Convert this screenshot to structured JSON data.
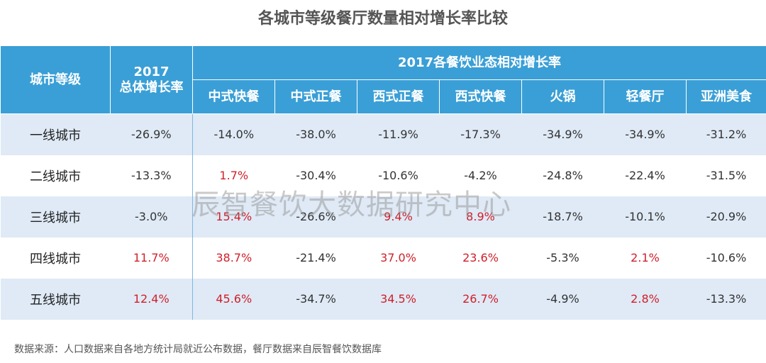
{
  "title": "各城市等级餐厅数量相对增长率比较",
  "header": {
    "city_level": "城市等级",
    "overall_line1": "2017",
    "overall_line2": "总体增长率",
    "group": "2017各餐饮业态相对增长率",
    "categories": [
      "中式快餐",
      "中式正餐",
      "西式正餐",
      "西式快餐",
      "火锅",
      "轻餐厅",
      "亚洲美食"
    ]
  },
  "rows": [
    {
      "city": "一线城市",
      "overall": "-26.9%",
      "values": [
        "-14.0%",
        "-38.0%",
        "-11.9%",
        "-17.3%",
        "-34.9%",
        "-34.9%",
        "-31.2%"
      ]
    },
    {
      "city": "二线城市",
      "overall": "-13.3%",
      "values": [
        "1.7%",
        "-30.4%",
        "-10.6%",
        "-4.2%",
        "-24.8%",
        "-22.4%",
        "-31.5%"
      ]
    },
    {
      "city": "三线城市",
      "overall": "-3.0%",
      "values": [
        "15.4%",
        "-26.6%",
        "9.4%",
        "8.9%",
        "-18.7%",
        "-10.1%",
        "-20.9%"
      ]
    },
    {
      "city": "四线城市",
      "overall": "11.7%",
      "values": [
        "38.7%",
        "-21.4%",
        "37.0%",
        "23.6%",
        "-5.3%",
        "2.1%",
        "-10.6%"
      ]
    },
    {
      "city": "五线城市",
      "overall": "12.4%",
      "values": [
        "45.6%",
        "-34.7%",
        "34.5%",
        "26.7%",
        "-4.9%",
        "2.8%",
        "-13.3%"
      ]
    }
  ],
  "watermark": "辰智餐饮大数据研究中心",
  "source": "数据来源：人口数据来自各地方统计局就近公布数据，餐厅数据来自辰智餐饮数据库",
  "colors": {
    "header_bg": "#3a9fd6",
    "stripe": "#dfeaf6",
    "positive": "#d0202a",
    "negative": "#333333"
  },
  "chart_data": {
    "type": "table",
    "title": "各城市等级餐厅数量相对增长率比较",
    "columns": [
      "城市等级",
      "2017总体增长率",
      "中式快餐",
      "中式正餐",
      "西式正餐",
      "西式快餐",
      "火锅",
      "轻餐厅",
      "亚洲美食"
    ],
    "categories": [
      "一线城市",
      "二线城市",
      "三线城市",
      "四线城市",
      "五线城市"
    ],
    "series": [
      {
        "name": "2017总体增长率",
        "values": [
          -26.9,
          -13.3,
          -3.0,
          11.7,
          12.4
        ]
      },
      {
        "name": "中式快餐",
        "values": [
          -14.0,
          1.7,
          15.4,
          38.7,
          45.6
        ]
      },
      {
        "name": "中式正餐",
        "values": [
          -38.0,
          -30.4,
          -26.6,
          -21.4,
          -34.7
        ]
      },
      {
        "name": "西式正餐",
        "values": [
          -11.9,
          -10.6,
          9.4,
          37.0,
          34.5
        ]
      },
      {
        "name": "西式快餐",
        "values": [
          -17.3,
          -4.2,
          8.9,
          23.6,
          26.7
        ]
      },
      {
        "name": "火锅",
        "values": [
          -34.9,
          -24.8,
          -18.7,
          -5.3,
          -4.9
        ]
      },
      {
        "name": "轻餐厅",
        "values": [
          -34.9,
          -22.4,
          -10.1,
          2.1,
          2.8
        ]
      },
      {
        "name": "亚洲美食",
        "values": [
          -31.2,
          -31.5,
          -20.9,
          -10.6,
          -13.3
        ]
      }
    ]
  }
}
